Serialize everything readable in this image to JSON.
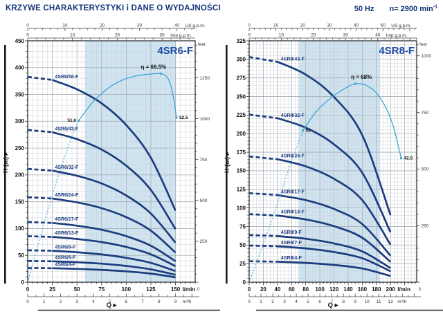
{
  "header": {
    "title": "KRZYWE CHARAKTERYSTYKI i DANE O WYDAJNOŚCI",
    "frequency": "50 Hz",
    "speed": "n= 2900 min",
    "speed_exponent": "-1"
  },
  "colors": {
    "curve": "#1b3c7e",
    "efficiency": "#3ea6d6",
    "band": "#cfe4f1",
    "grid_minor": "#ccd0d6",
    "grid_major": "#a8adb5",
    "model_title": "#1c49a4",
    "axis_text": "#333333",
    "strong_text": "#111111"
  },
  "chart_data": [
    {
      "type": "line",
      "model": "4SR6-F",
      "x_axis": {
        "unit": "l/min",
        "max": 170,
        "label_step": 25,
        "label_max": 150,
        "minor_step": 5
      },
      "x2_axis": {
        "unit": "m³/h",
        "lmin_per_unit": 16.6667,
        "label_step": 1,
        "label_max": 9,
        "minor_step": 0.5
      },
      "us_axis": {
        "unit": "US g.p.m.",
        "lmin_per_unit": 3.7854,
        "label_step": 10,
        "label_max": 40,
        "minor_step": 2
      },
      "imp_axis": {
        "unit": "Imp g.p.m.",
        "lmin_per_unit": 4.5461,
        "label_step": 10,
        "label_max": 30,
        "minor_step": 2
      },
      "y_axis": {
        "label": "H (m)",
        "max": 450,
        "label_step": 50,
        "minor_step": 10
      },
      "feet_axis": {
        "unit": "feet",
        "m_per_unit": 0.3048,
        "label_step": 250,
        "label_max": 1250,
        "minor_step": 50
      },
      "q_label": "Q",
      "operating_band_lmin": [
        58,
        150
      ],
      "curve_dashed_until_lmin": 25,
      "curve_label_at_lmin": 27,
      "per_stage_head_m": [
        [
          0,
          6.6
        ],
        [
          25,
          6.5
        ],
        [
          50,
          6.2
        ],
        [
          75,
          5.75
        ],
        [
          100,
          5.05
        ],
        [
          125,
          4.0
        ],
        [
          150,
          2.3
        ]
      ],
      "curves": [
        {
          "label": "4SR6/58-F",
          "stages": 58
        },
        {
          "label": "4SR6/43-F",
          "stages": 43
        },
        {
          "label": "4SR6/32-F",
          "stages": 32
        },
        {
          "label": "4SR6/24-F",
          "stages": 24
        },
        {
          "label": "4SR6/17-F",
          "stages": 17
        },
        {
          "label": "4SR6/13-F",
          "stages": 13
        },
        {
          "label": "4SR6/9-F",
          "stages": 9
        },
        {
          "label": "4SR6/6-F",
          "stages": 6
        },
        {
          "label": "4SR6/4-F",
          "stages": 4
        }
      ],
      "efficiency": {
        "pct_scale_max": 77,
        "solid_from_lmin": 52,
        "points": [
          [
            0,
            0
          ],
          [
            15,
            17
          ],
          [
            30,
            33
          ],
          [
            45,
            46.5
          ],
          [
            52,
            51.6
          ],
          [
            65,
            57
          ],
          [
            80,
            61.5
          ],
          [
            95,
            64.3
          ],
          [
            110,
            65.8
          ],
          [
            125,
            66.4
          ],
          [
            135,
            66.5
          ],
          [
            142,
            65.2
          ],
          [
            147,
            60.5
          ],
          [
            151,
            52.5
          ]
        ],
        "peak_label": {
          "q": 135,
          "pct": 66.5,
          "text": "η = 66.5%",
          "align": "end"
        },
        "markers": [
          {
            "q": 52,
            "pct": 51.6,
            "label": "51.6",
            "side": "left"
          },
          {
            "q": 151,
            "pct": 52.5,
            "label": "52.5",
            "side": "right"
          }
        ]
      }
    },
    {
      "type": "line",
      "model": "4SR8-F",
      "x_axis": {
        "unit": "l/min",
        "max": 237,
        "label_step": 20,
        "label_max": 200,
        "minor_step": 5
      },
      "x2_axis": {
        "unit": "m³/h",
        "lmin_per_unit": 16.6667,
        "label_step": 1,
        "label_max": 12,
        "minor_step": 0.5
      },
      "us_axis": {
        "unit": "US g.p.m.",
        "lmin_per_unit": 3.7854,
        "label_step": 10,
        "label_max": 50,
        "minor_step": 2
      },
      "imp_axis": {
        "unit": "Imp g.p.m.",
        "lmin_per_unit": 4.5461,
        "label_step": 10,
        "label_max": 40,
        "minor_step": 2
      },
      "y_axis": {
        "label": "H (m)",
        "max": 325,
        "label_step": 25,
        "minor_step": 5
      },
      "feet_axis": {
        "unit": "feet",
        "m_per_unit": 0.3048,
        "label_step": 250,
        "label_max": 1000,
        "minor_step": 50
      },
      "q_label": "Q",
      "operating_band_lmin": [
        70,
        185
      ],
      "curve_dashed_until_lmin": 40,
      "curve_label_at_lmin": 44,
      "per_stage_head_m": [
        [
          0,
          7.05
        ],
        [
          40,
          6.9
        ],
        [
          80,
          6.5
        ],
        [
          120,
          5.8
        ],
        [
          160,
          4.6
        ],
        [
          200,
          2.1
        ]
      ],
      "curves": [
        {
          "label": "4SR8/43-F",
          "stages": 43
        },
        {
          "label": "4SR8/32-F",
          "stages": 32
        },
        {
          "label": "4SR8/24-F",
          "stages": 24
        },
        {
          "label": "4SR8/17-F",
          "stages": 17
        },
        {
          "label": "4SR8/13-F",
          "stages": 13
        },
        {
          "label": "4SR8/9-F",
          "stages": 9
        },
        {
          "label": "4SR8/7-F",
          "stages": 7
        },
        {
          "label": "4SR8/4-F",
          "stages": 4
        }
      ],
      "efficiency": {
        "pct_scale_max": 82.7,
        "solid_from_lmin": 76,
        "points": [
          [
            0,
            0
          ],
          [
            20,
            13
          ],
          [
            40,
            27
          ],
          [
            58,
            40
          ],
          [
            76,
            52
          ],
          [
            95,
            58.5
          ],
          [
            115,
            63
          ],
          [
            135,
            66.3
          ],
          [
            150,
            68
          ],
          [
            165,
            67.5
          ],
          [
            180,
            64.8
          ],
          [
            195,
            59
          ],
          [
            205,
            52.5
          ],
          [
            215,
            42.5
          ]
        ],
        "peak_label": {
          "q": 150,
          "pct": 68,
          "text": "η = 68%",
          "align": "start"
        },
        "markers": [
          {
            "q": 76,
            "pct": 52,
            "label": "52",
            "side": "right"
          },
          {
            "q": 215,
            "pct": 42.5,
            "label": "42.5",
            "side": "right"
          }
        ]
      }
    }
  ]
}
